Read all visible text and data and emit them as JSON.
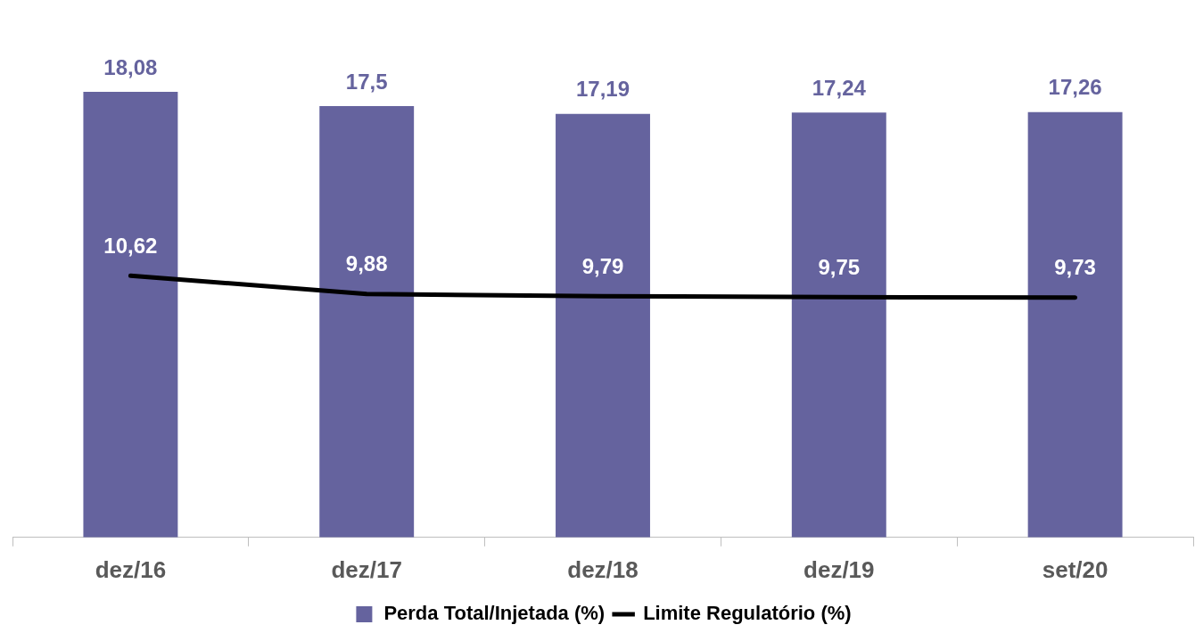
{
  "chart_data": {
    "type": "bar",
    "categories": [
      "dez/16",
      "dez/17",
      "dez/18",
      "dez/19",
      "set/20"
    ],
    "series": [
      {
        "name": "Perda Total/Injetada (%)",
        "color": "#65639e",
        "values": [
          18.08,
          17.5,
          17.19,
          17.24,
          17.26
        ],
        "value_labels": [
          "18,08",
          "17,5",
          "17,19",
          "17,24",
          "17,26"
        ]
      },
      {
        "name": "Limite Regulatório (%)",
        "type": "line",
        "color": "#000000",
        "values": [
          10.62,
          9.88,
          9.79,
          9.75,
          9.73
        ],
        "value_labels": [
          "10,62",
          "9,88",
          "9,79",
          "9,75",
          "9,73"
        ]
      }
    ],
    "tick_labels": "x",
    "grid": false,
    "legend": "bottom",
    "marker": "none",
    "line_style": "solid"
  }
}
